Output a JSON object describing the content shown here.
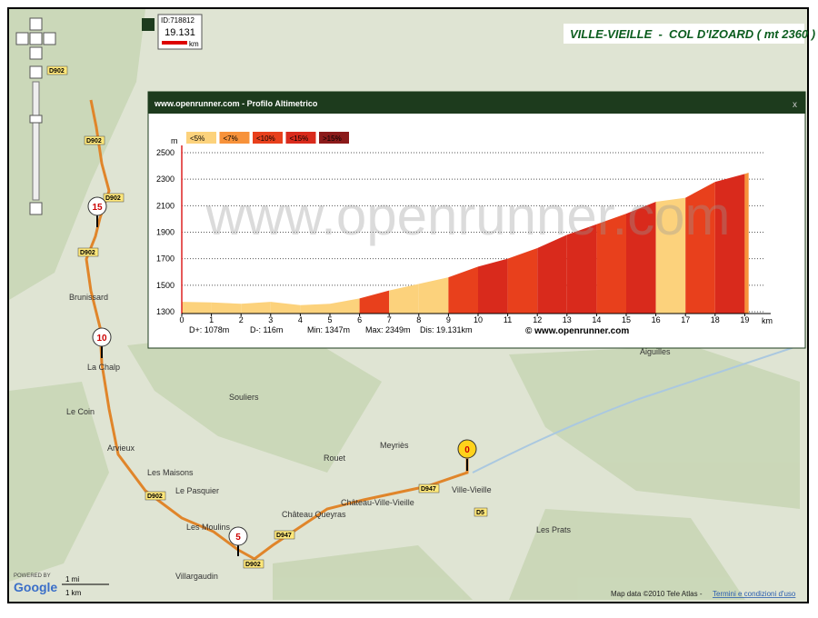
{
  "header": {
    "title": "VILLE-VIEILLE  -  COL D'IZOARD ( mt 2360 )"
  },
  "scale_box": {
    "id": "ID:718812",
    "distance": "19.131",
    "unit": "km"
  },
  "map": {
    "places": [
      "Brunissard",
      "La Chalp",
      "Le Coin",
      "Arvieux",
      "Les Maisons",
      "Le Pasquier",
      "Les Moulins",
      "Villargaudin",
      "Souliers",
      "Rouet",
      "Meyriès",
      "Château Queyras",
      "Château-Ville-Vieille",
      "Ville-Vieille",
      "Les Prats",
      "Aiguilles"
    ],
    "roads": [
      "D902",
      "D902",
      "D902",
      "D902",
      "D902",
      "D902",
      "D947",
      "D947",
      "D5"
    ],
    "markers": [
      "0",
      "5",
      "10",
      "15"
    ],
    "scale": [
      "1 mi",
      "1 km"
    ],
    "powered": "POWERED BY",
    "logo": "Google",
    "attribution": "Map data ©2010 Tele Atlas -",
    "terms": "Termini e condizioni d'uso"
  },
  "profile": {
    "title": "www.openrunner.com - Profilo Altimetrico",
    "close": "x",
    "watermark": "www.openrunner.com",
    "credit": "© www.openrunner.com",
    "y_unit": "m",
    "x_unit": "km",
    "legend": [
      {
        "label": "<5%",
        "color": "#fcd27c"
      },
      {
        "label": "<7%",
        "color": "#f7923a"
      },
      {
        "label": "<10%",
        "color": "#e8401c"
      },
      {
        "label": "<15%",
        "color": "#d92a1c"
      },
      {
        "label": ">15%",
        "color": "#8b1a1a"
      }
    ],
    "stats": [
      "D+: 1078m",
      "D-: 116m",
      "Min: 1347m",
      "Max: 2349m",
      "Dis: 19.131km"
    ],
    "chart_data": {
      "type": "area",
      "x": [
        0,
        1,
        2,
        3,
        4,
        5,
        6,
        7,
        8,
        9,
        10,
        11,
        12,
        13,
        14,
        15,
        16,
        17,
        18,
        19,
        19.131
      ],
      "values": [
        1375,
        1370,
        1360,
        1375,
        1350,
        1360,
        1400,
        1460,
        1510,
        1560,
        1640,
        1700,
        1780,
        1880,
        1960,
        2040,
        2130,
        2160,
        2280,
        2340,
        2349
      ],
      "segment_colors": [
        "#fcd27c",
        "#fcd27c",
        "#fcd27c",
        "#fcd27c",
        "#fcd27c",
        "#fcd27c",
        "#e8401c",
        "#fcd27c",
        "#fcd27c",
        "#e8401c",
        "#d92a1c",
        "#e8401c",
        "#d92a1c",
        "#d92a1c",
        "#e8401c",
        "#d92a1c",
        "#fcd27c",
        "#e8401c",
        "#d92a1c",
        "#f7923a"
      ],
      "xlim": [
        0,
        19.6
      ],
      "ylim": [
        1300,
        2500
      ],
      "xticks": [
        0,
        1,
        2,
        3,
        4,
        5,
        6,
        7,
        8,
        9,
        10,
        11,
        12,
        13,
        14,
        15,
        16,
        17,
        18,
        19
      ],
      "yticks": [
        1300,
        1500,
        1700,
        1900,
        2100,
        2300,
        2500
      ],
      "grid": true
    }
  }
}
